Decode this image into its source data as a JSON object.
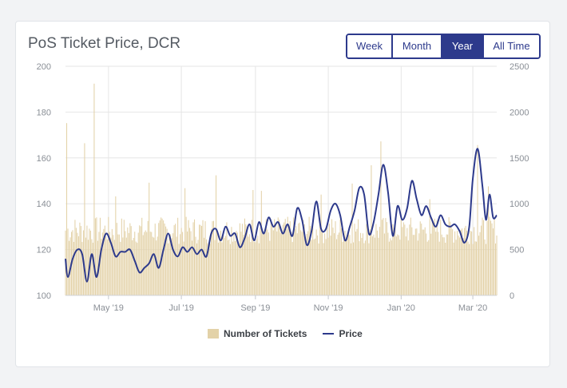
{
  "chart_data": {
    "type": "bar+line",
    "title": "PoS Ticket Price, DCR",
    "y_left": {
      "ticks": [
        "100",
        "120",
        "140",
        "160",
        "180",
        "200"
      ],
      "range": [
        100,
        200
      ]
    },
    "y_right": {
      "ticks": [
        "0",
        "500",
        "1000",
        "1500",
        "2000",
        "2500"
      ],
      "range": [
        0,
        2500
      ]
    },
    "x_ticks": [
      "May '19",
      "Jul '19",
      "Sep '19",
      "Nov '19",
      "Jan '20",
      "Mar '20"
    ],
    "x_range": [
      "2019-03-26",
      "2020-03-21"
    ],
    "tick_dates": [
      "2019-05-01",
      "2019-07-01",
      "2019-09-01",
      "2019-11-01",
      "2020-01-01",
      "2020-03-01"
    ],
    "grid": true,
    "legend_position": "bottom",
    "series": [
      {
        "name": "Number of Tickets",
        "type": "bar",
        "axis": "right",
        "color": "#e3d2a8",
        "typical_range": [
          560,
          860
        ],
        "spikes": [
          {
            "date": "2019-03-27",
            "value": 1880
          },
          {
            "date": "2019-04-11",
            "value": 1660
          },
          {
            "date": "2019-04-19",
            "value": 2310
          },
          {
            "date": "2019-05-07",
            "value": 1080
          },
          {
            "date": "2019-06-04",
            "value": 1230
          },
          {
            "date": "2019-07-04",
            "value": 1170
          },
          {
            "date": "2019-07-30",
            "value": 1310
          },
          {
            "date": "2019-08-30",
            "value": 1150
          },
          {
            "date": "2019-09-06",
            "value": 1140
          },
          {
            "date": "2019-10-26",
            "value": 1100
          },
          {
            "date": "2019-11-21",
            "value": 1220
          },
          {
            "date": "2019-12-07",
            "value": 1420
          },
          {
            "date": "2019-12-15",
            "value": 1680
          },
          {
            "date": "2020-01-25",
            "value": 1050
          },
          {
            "date": "2020-03-05",
            "value": 1640
          },
          {
            "date": "2020-03-14",
            "value": 1190
          }
        ]
      },
      {
        "name": "Price",
        "type": "line",
        "axis": "left",
        "color": "#2d3a8c",
        "points": [
          [
            "2019-03-26",
            116
          ],
          [
            "2019-03-28",
            108
          ],
          [
            "2019-04-01",
            116
          ],
          [
            "2019-04-05",
            120
          ],
          [
            "2019-04-09",
            118
          ],
          [
            "2019-04-13",
            106
          ],
          [
            "2019-04-17",
            118
          ],
          [
            "2019-04-21",
            108
          ],
          [
            "2019-04-25",
            120
          ],
          [
            "2019-04-29",
            127
          ],
          [
            "2019-05-03",
            123
          ],
          [
            "2019-05-07",
            117
          ],
          [
            "2019-05-11",
            119
          ],
          [
            "2019-05-15",
            119
          ],
          [
            "2019-05-19",
            120
          ],
          [
            "2019-05-23",
            115
          ],
          [
            "2019-05-27",
            110
          ],
          [
            "2019-05-31",
            112
          ],
          [
            "2019-06-04",
            114
          ],
          [
            "2019-06-08",
            118
          ],
          [
            "2019-06-12",
            112
          ],
          [
            "2019-06-16",
            120
          ],
          [
            "2019-06-20",
            127
          ],
          [
            "2019-06-24",
            120
          ],
          [
            "2019-06-28",
            117
          ],
          [
            "2019-07-02",
            121
          ],
          [
            "2019-07-06",
            119
          ],
          [
            "2019-07-10",
            121
          ],
          [
            "2019-07-14",
            118
          ],
          [
            "2019-07-18",
            120
          ],
          [
            "2019-07-22",
            117
          ],
          [
            "2019-07-26",
            127
          ],
          [
            "2019-07-30",
            129
          ],
          [
            "2019-08-03",
            124
          ],
          [
            "2019-08-07",
            130
          ],
          [
            "2019-08-11",
            126
          ],
          [
            "2019-08-15",
            127
          ],
          [
            "2019-08-19",
            121
          ],
          [
            "2019-08-23",
            125
          ],
          [
            "2019-08-27",
            131
          ],
          [
            "2019-08-31",
            124
          ],
          [
            "2019-09-04",
            132
          ],
          [
            "2019-09-08",
            127
          ],
          [
            "2019-09-12",
            134
          ],
          [
            "2019-09-16",
            130
          ],
          [
            "2019-09-20",
            132
          ],
          [
            "2019-09-24",
            127
          ],
          [
            "2019-09-28",
            131
          ],
          [
            "2019-10-02",
            126
          ],
          [
            "2019-10-06",
            138
          ],
          [
            "2019-10-10",
            133
          ],
          [
            "2019-10-14",
            122
          ],
          [
            "2019-10-18",
            128
          ],
          [
            "2019-10-22",
            141
          ],
          [
            "2019-10-26",
            129
          ],
          [
            "2019-10-30",
            129
          ],
          [
            "2019-11-03",
            137
          ],
          [
            "2019-11-07",
            140
          ],
          [
            "2019-11-11",
            135
          ],
          [
            "2019-11-15",
            124
          ],
          [
            "2019-11-19",
            130
          ],
          [
            "2019-11-23",
            137
          ],
          [
            "2019-11-27",
            147
          ],
          [
            "2019-12-01",
            144
          ],
          [
            "2019-12-05",
            127
          ],
          [
            "2019-12-09",
            132
          ],
          [
            "2019-12-13",
            144
          ],
          [
            "2019-12-17",
            157
          ],
          [
            "2019-12-21",
            145
          ],
          [
            "2019-12-25",
            126
          ],
          [
            "2019-12-29",
            139
          ],
          [
            "2020-01-02",
            133
          ],
          [
            "2020-01-06",
            138
          ],
          [
            "2020-01-10",
            150
          ],
          [
            "2020-01-14",
            142
          ],
          [
            "2020-01-18",
            135
          ],
          [
            "2020-01-22",
            139
          ],
          [
            "2020-01-26",
            134
          ],
          [
            "2020-01-30",
            130
          ],
          [
            "2020-02-03",
            135
          ],
          [
            "2020-02-07",
            131
          ],
          [
            "2020-02-11",
            130
          ],
          [
            "2020-02-15",
            131
          ],
          [
            "2020-02-19",
            128
          ],
          [
            "2020-02-23",
            123
          ],
          [
            "2020-02-27",
            130
          ],
          [
            "2020-03-01",
            151
          ],
          [
            "2020-03-05",
            164
          ],
          [
            "2020-03-09",
            148
          ],
          [
            "2020-03-12",
            133
          ],
          [
            "2020-03-15",
            144
          ],
          [
            "2020-03-18",
            134
          ],
          [
            "2020-03-21",
            135
          ]
        ]
      }
    ]
  },
  "header": {
    "title": "PoS Ticket Price, DCR"
  },
  "range_buttons": [
    {
      "label": "Week",
      "active": false
    },
    {
      "label": "Month",
      "active": false
    },
    {
      "label": "Year",
      "active": true
    },
    {
      "label": "All Time",
      "active": false
    }
  ],
  "legend": {
    "tickets_label": "Number of Tickets",
    "price_label": "Price"
  }
}
